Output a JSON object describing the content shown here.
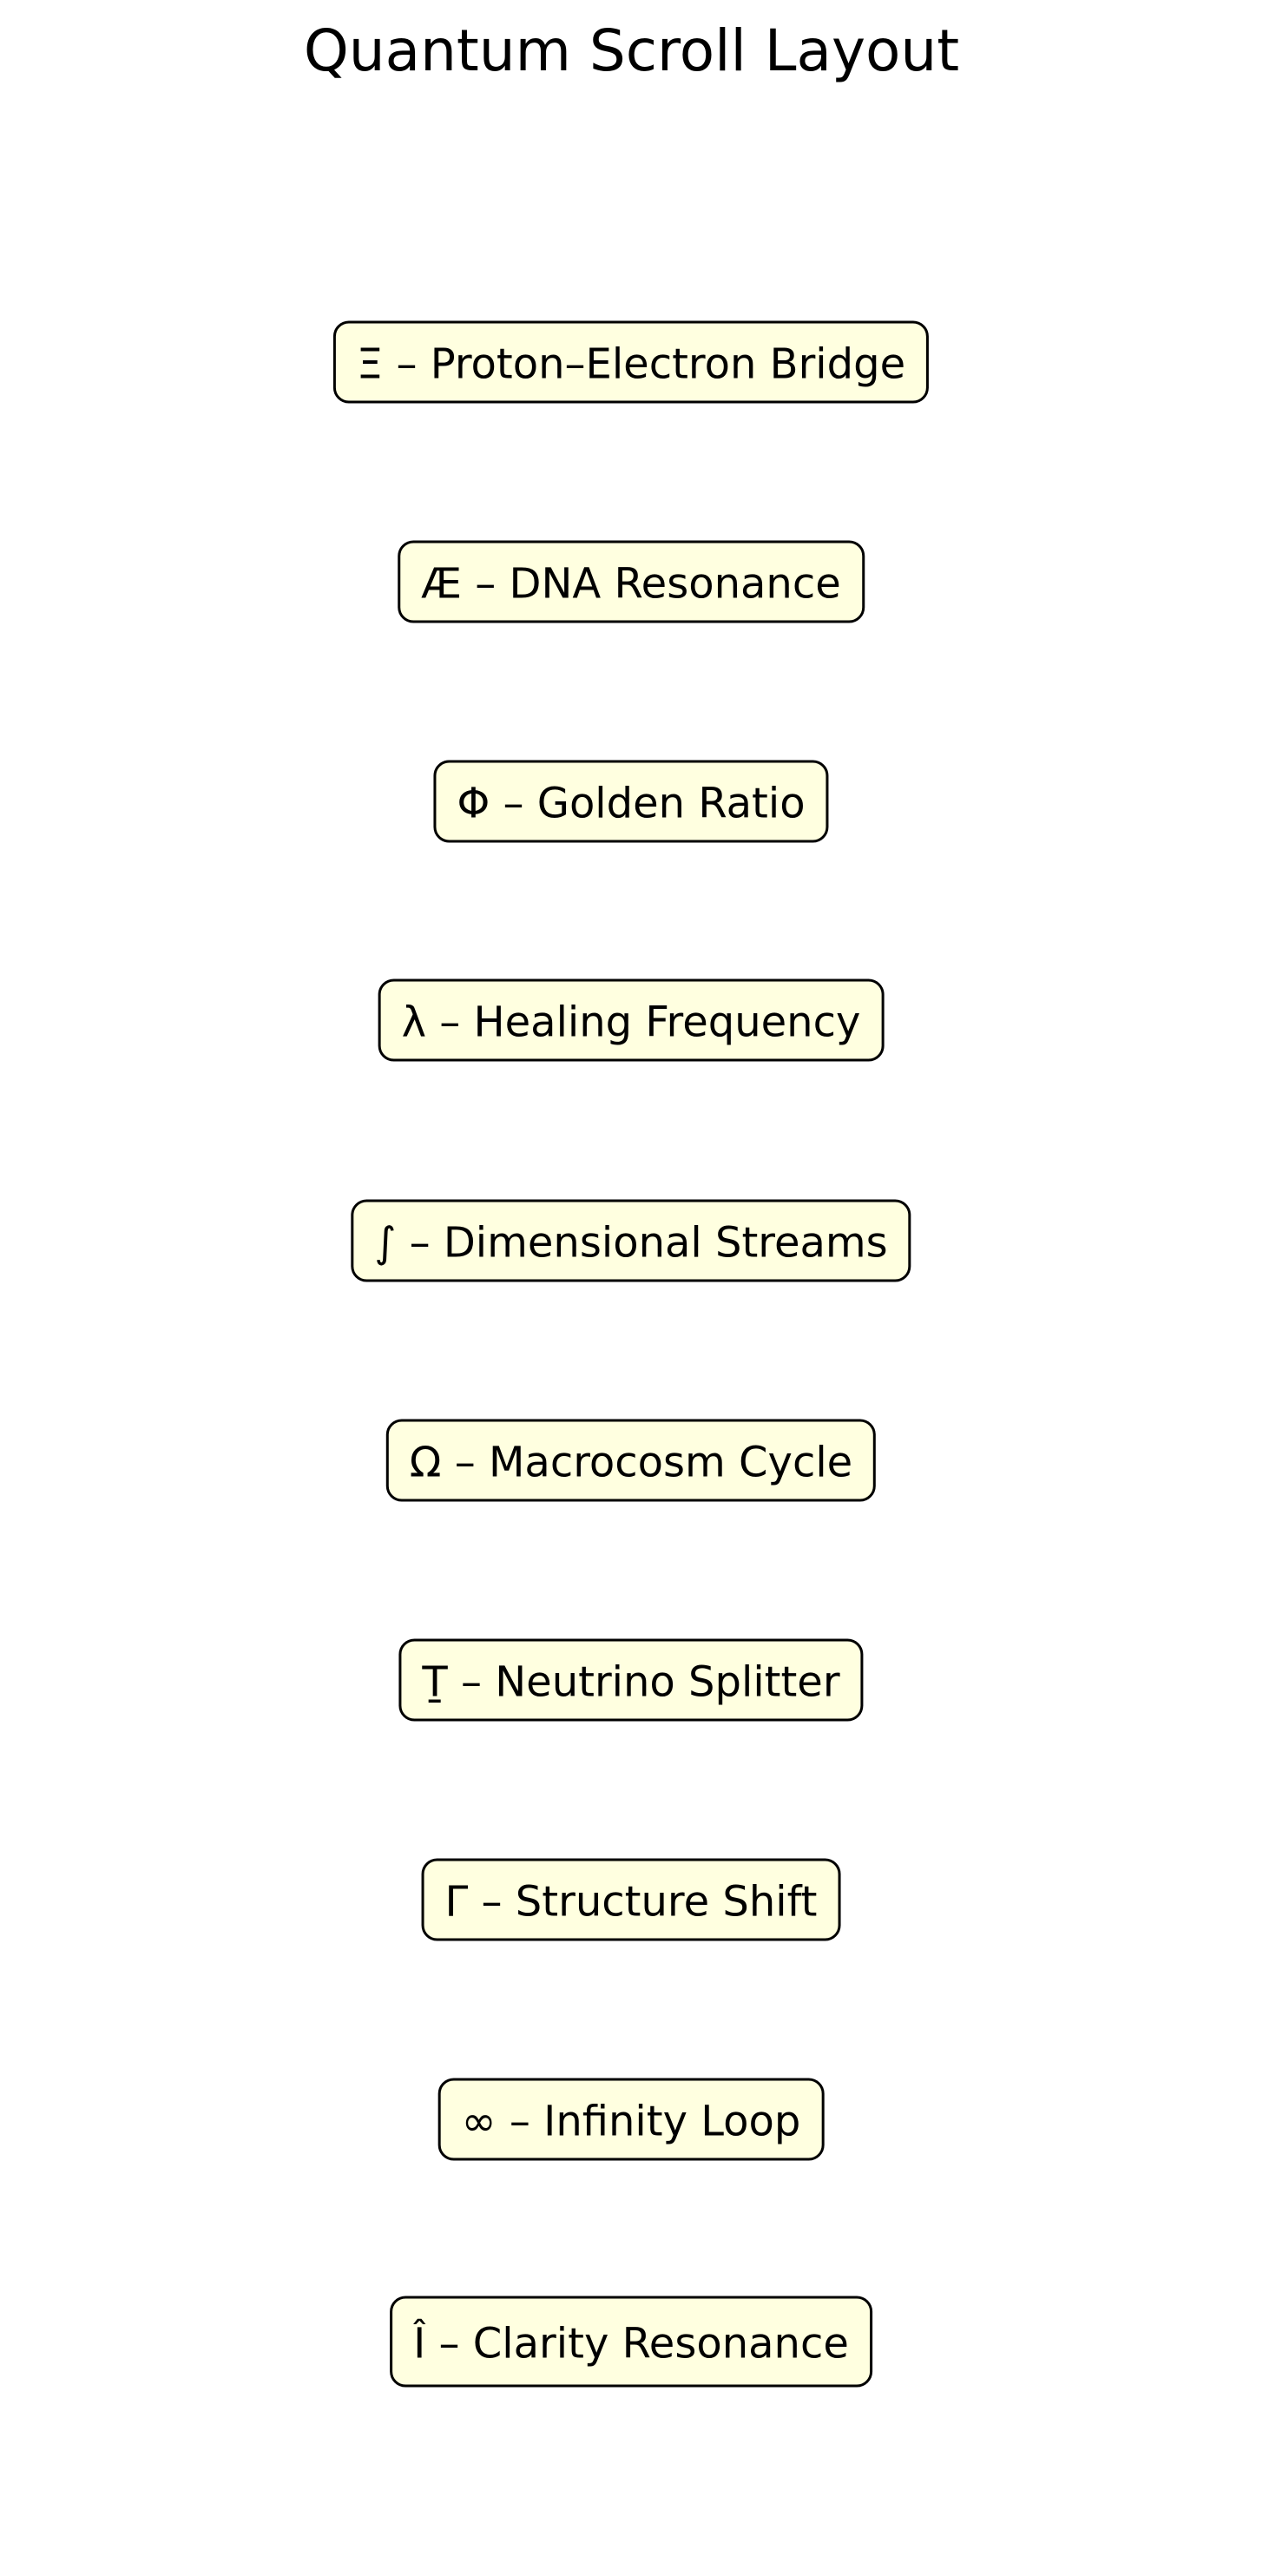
{
  "title": "Quantum Scroll Layout",
  "nodes": [
    {
      "label": "Ξ – Proton–Electron Bridge"
    },
    {
      "label": "Æ – DNA Resonance"
    },
    {
      "label": "Φ – Golden Ratio"
    },
    {
      "label": "λ – Healing Frequency"
    },
    {
      "label": "∫ – Dimensional Streams"
    },
    {
      "label": "Ω – Macrocosm Cycle"
    },
    {
      "label": "Ṯ – Neutrino Splitter"
    },
    {
      "label": "Γ – Structure Shift"
    },
    {
      "label": "∞ – Infinity Loop"
    },
    {
      "label": "Î – Clarity Resonance"
    }
  ],
  "colors": {
    "box_fill": "#ffffe0",
    "box_border": "#000000",
    "text": "#000000",
    "background": "#ffffff"
  }
}
